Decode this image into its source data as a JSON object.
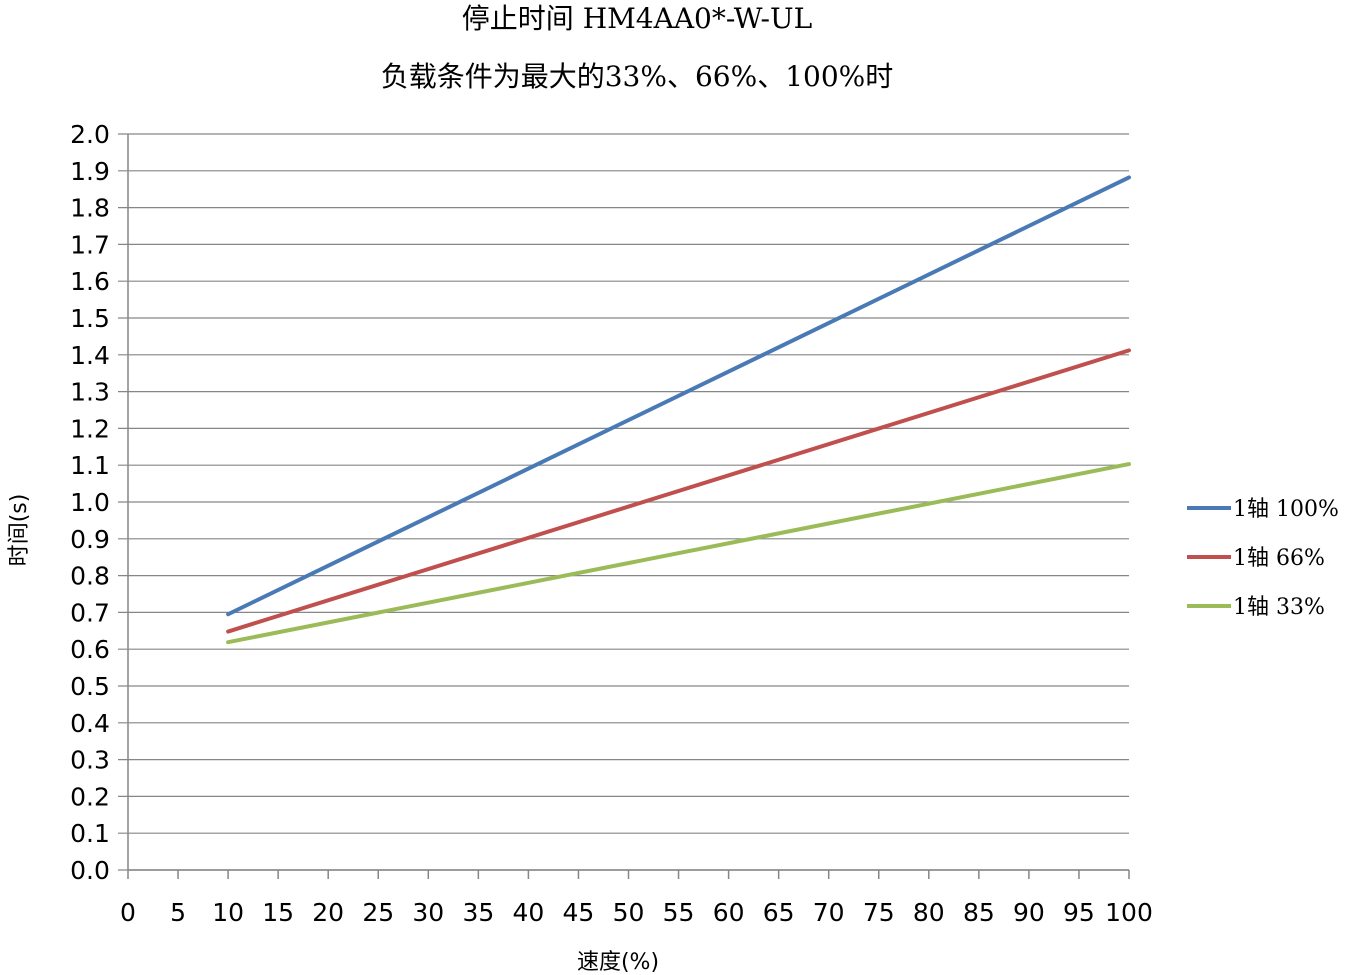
{
  "chart_data": {
    "type": "line",
    "title": "停止时间 HM4AA0*-W-UL",
    "subtitle": "负载条件为最大的33%、66%、100%时",
    "xlabel": "速度(%)",
    "ylabel": "时间(s)",
    "xlim": [
      0,
      100
    ],
    "ylim": [
      0,
      2.0
    ],
    "x_ticks": [
      "0",
      "5",
      "10",
      "15",
      "20",
      "25",
      "30",
      "35",
      "40",
      "45",
      "50",
      "55",
      "60",
      "65",
      "70",
      "75",
      "80",
      "85",
      "90",
      "95",
      "100"
    ],
    "y_ticks": [
      "0.0",
      "0.1",
      "0.2",
      "0.3",
      "0.4",
      "0.5",
      "0.6",
      "0.7",
      "0.8",
      "0.9",
      "1.0",
      "1.1",
      "1.2",
      "1.3",
      "1.4",
      "1.5",
      "1.6",
      "1.7",
      "1.8",
      "1.9",
      "2.0"
    ],
    "grid": "horizontal",
    "legend_position": "right",
    "series": [
      {
        "name": "1轴 100%",
        "color": "#4a7ab5",
        "x": [
          10,
          100
        ],
        "y": [
          0.695,
          1.882
        ]
      },
      {
        "name": "1轴 66%",
        "color": "#c0504d",
        "x": [
          10,
          100
        ],
        "y": [
          0.648,
          1.412
        ]
      },
      {
        "name": "1轴 33%",
        "color": "#9bbb59",
        "x": [
          10,
          100
        ],
        "y": [
          0.619,
          1.103
        ]
      }
    ]
  }
}
